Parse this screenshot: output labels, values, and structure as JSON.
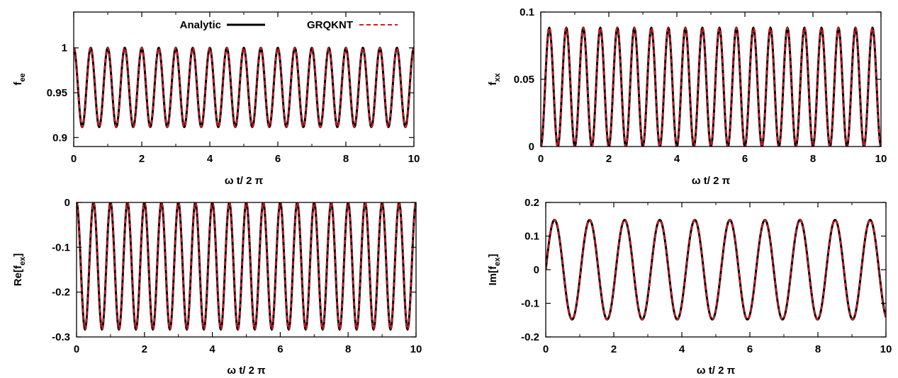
{
  "chart_data": [
    {
      "type": "line",
      "xlabel": "ω t/ 2 π",
      "ylabel": "f",
      "ylabel_sub": "ee",
      "xlim": [
        0,
        10
      ],
      "ylim": [
        0.89,
        1.04
      ],
      "xticks": [
        "0",
        "2",
        "4",
        "6",
        "8",
        "10"
      ],
      "xtick_values": [
        0,
        2,
        4,
        6,
        8,
        10
      ],
      "yticks": [
        "0.9",
        "0.95",
        "1"
      ],
      "ytick_values": [
        0.9,
        0.95,
        1.0
      ],
      "legend": [
        {
          "label": "Analytic",
          "color": "#000000",
          "style": "solid"
        },
        {
          "label": "GRQKNT",
          "color": "#e8141e",
          "style": "dashed"
        }
      ],
      "legend_position": "top",
      "series": [
        {
          "name": "Analytic",
          "color": "#000000",
          "style": "solid",
          "form": "offset_cos",
          "offset": 0.9559,
          "amplitude": 0.0441,
          "cycles_per_unit": 2.0,
          "phase": 0
        },
        {
          "name": "GRQKNT",
          "color": "#e8141e",
          "style": "dashed",
          "form": "offset_cos",
          "offset": 0.9559,
          "amplitude": 0.0441,
          "cycles_per_unit": 2.0,
          "phase": 0
        }
      ]
    },
    {
      "type": "line",
      "xlabel": "ω t/ 2 π",
      "ylabel": "f",
      "ylabel_sub": "xx",
      "xlim": [
        0,
        10
      ],
      "ylim": [
        0,
        0.1
      ],
      "xticks": [
        "0",
        "2",
        "4",
        "6",
        "8",
        "10"
      ],
      "xtick_values": [
        0,
        2,
        4,
        6,
        8,
        10
      ],
      "yticks": [
        "0",
        "0.05",
        "0.1"
      ],
      "ytick_values": [
        0,
        0.05,
        0.1
      ],
      "series": [
        {
          "name": "Analytic",
          "color": "#000000",
          "style": "solid",
          "form": "offset_cos",
          "offset": 0.0441,
          "amplitude": -0.0441,
          "cycles_per_unit": 2.0,
          "phase": 0
        },
        {
          "name": "GRQKNT",
          "color": "#e8141e",
          "style": "dashed",
          "form": "offset_cos",
          "offset": 0.0441,
          "amplitude": -0.0441,
          "cycles_per_unit": 2.0,
          "phase": 0
        }
      ]
    },
    {
      "type": "line",
      "xlabel": "ω t/ 2 π",
      "ylabel": "Re[f",
      "ylabel_sub": "ex",
      "ylabel_suffix": "]",
      "xlim": [
        0,
        10
      ],
      "ylim": [
        -0.3,
        0
      ],
      "xticks": [
        "0",
        "2",
        "4",
        "6",
        "8",
        "10"
      ],
      "xtick_values": [
        0,
        2,
        4,
        6,
        8,
        10
      ],
      "yticks": [
        "-0.3",
        "-0.2",
        "-0.1",
        "0"
      ],
      "ytick_values": [
        -0.3,
        -0.2,
        -0.1,
        0
      ],
      "series": [
        {
          "name": "Analytic",
          "color": "#000000",
          "style": "solid",
          "form": "offset_cos",
          "offset": -0.1415,
          "amplitude": 0.1415,
          "cycles_per_unit": 2.0,
          "phase": 0
        },
        {
          "name": "GRQKNT",
          "color": "#e8141e",
          "style": "dashed",
          "form": "offset_cos",
          "offset": -0.1415,
          "amplitude": 0.1415,
          "cycles_per_unit": 2.0,
          "phase": 0
        }
      ]
    },
    {
      "type": "line",
      "xlabel": "ω t/ 2 π",
      "ylabel": "Im[f",
      "ylabel_sub": "ex",
      "ylabel_suffix": "]",
      "xlim": [
        0,
        10
      ],
      "ylim": [
        -0.2,
        0.2
      ],
      "xticks": [
        "0",
        "2",
        "4",
        "6",
        "8",
        "10"
      ],
      "xtick_values": [
        0,
        2,
        4,
        6,
        8,
        10
      ],
      "yticks": [
        "-0.2",
        "-0.1",
        "0",
        "0.1",
        "0.2"
      ],
      "ytick_values": [
        -0.2,
        -0.1,
        0,
        0.1,
        0.2
      ],
      "series": [
        {
          "name": "Analytic",
          "color": "#000000",
          "style": "solid",
          "form": "sin",
          "amplitude": 0.148,
          "cycles_per_unit": 0.97,
          "phase": 0
        },
        {
          "name": "GRQKNT",
          "color": "#e8141e",
          "style": "dashed",
          "form": "sin",
          "amplitude": 0.148,
          "cycles_per_unit": 0.97,
          "phase": 0
        }
      ]
    }
  ]
}
